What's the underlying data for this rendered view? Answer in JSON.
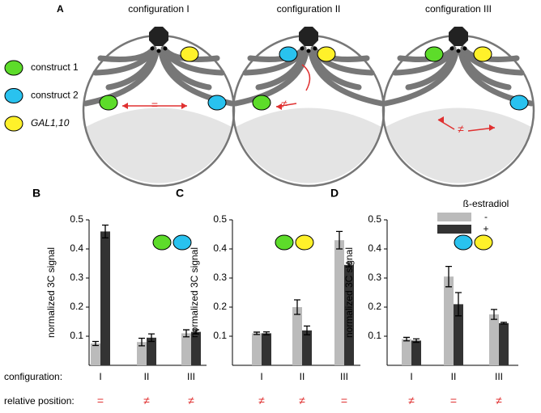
{
  "panel_a": {
    "label": "A",
    "configurations": [
      "configuration I",
      "configuration II",
      "configuration III"
    ],
    "relations": [
      "=",
      "≠",
      "≠"
    ],
    "legend": [
      {
        "name": "construct 1",
        "color": "#5ddc2a"
      },
      {
        "name": "construct 2",
        "color": "#29c2ef"
      },
      {
        "name": "GAL1,10",
        "color": "#fff12a"
      }
    ]
  },
  "row_labels": {
    "configuration": "configuration:",
    "relative_position": "relative position:"
  },
  "chart_data": [
    {
      "type": "bar",
      "label": "B",
      "y_label": "normalized 3C signal",
      "categories": [
        "I",
        "II",
        "III"
      ],
      "relative_position": [
        "=",
        "≠",
        "≠"
      ],
      "series": [
        {
          "color": "#bbbbbb",
          "values": [
            0.075,
            0.08,
            0.11
          ],
          "errors": [
            0.007,
            0.013,
            0.012
          ]
        },
        {
          "color": "#333333",
          "values": [
            0.46,
            0.095,
            0.115
          ],
          "errors": [
            0.022,
            0.013,
            0.007
          ]
        }
      ],
      "ylim": [
        0,
        0.5
      ],
      "yticks": [
        0.1,
        0.2,
        0.3,
        0.4,
        0.5
      ]
    },
    {
      "type": "bar",
      "label": "C",
      "y_label": "normalized 3C signal",
      "categories": [
        "I",
        "II",
        "III"
      ],
      "relative_position": [
        "≠",
        "≠",
        "="
      ],
      "series": [
        {
          "color": "#bbbbbb",
          "values": [
            0.11,
            0.2,
            0.43
          ],
          "errors": [
            0.004,
            0.025,
            0.03
          ]
        },
        {
          "color": "#333333",
          "values": [
            0.11,
            0.12,
            0.345
          ],
          "errors": [
            0.005,
            0.015,
            0.007
          ]
        }
      ],
      "ylim": [
        0,
        0.5
      ],
      "yticks": [
        0.1,
        0.2,
        0.3,
        0.4,
        0.5
      ]
    },
    {
      "type": "bar",
      "label": "D",
      "y_label": "normalized 3C signal",
      "categories": [
        "I",
        "II",
        "III"
      ],
      "relative_position": [
        "≠",
        "=",
        "≠"
      ],
      "legend_title": "ß-estradiol",
      "series": [
        {
          "name": "-",
          "color": "#bbbbbb",
          "values": [
            0.09,
            0.305,
            0.175
          ],
          "errors": [
            0.006,
            0.035,
            0.017
          ]
        },
        {
          "name": "+",
          "color": "#333333",
          "values": [
            0.085,
            0.21,
            0.145
          ],
          "errors": [
            0.006,
            0.04,
            0.003
          ]
        }
      ],
      "ylim": [
        0,
        0.5
      ],
      "yticks": [
        0.1,
        0.2,
        0.3,
        0.4,
        0.5
      ]
    }
  ]
}
